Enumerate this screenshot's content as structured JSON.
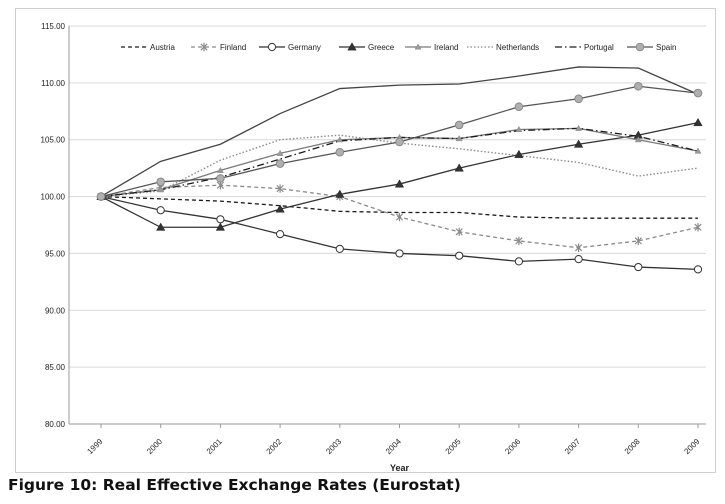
{
  "caption": "Figure 10: Real Effective Exchange Rates (Eurostat)",
  "chart_data": {
    "type": "line",
    "title": "",
    "xlabel": "Year",
    "ylabel": "",
    "categories": [
      "1999",
      "2000",
      "2001",
      "2002",
      "2003",
      "2004",
      "2005",
      "2006",
      "2007",
      "2008",
      "2009"
    ],
    "ylim": [
      80,
      115
    ],
    "yticks": [
      "80.00",
      "85.00",
      "90.00",
      "95.00",
      "100.00",
      "105.00",
      "110.00",
      "115.00"
    ],
    "grid": true,
    "legend_position": "top",
    "series": [
      {
        "name": "Austria",
        "color": "#1a1a1a",
        "dash": "dashed",
        "marker": "none",
        "values": [
          100.0,
          99.8,
          99.6,
          99.2,
          98.7,
          98.6,
          98.6,
          98.2,
          98.1,
          98.1,
          98.1
        ]
      },
      {
        "name": "Finland",
        "color": "#8a8a8a",
        "dash": "dashed",
        "marker": "star",
        "values": [
          100.0,
          100.8,
          101.0,
          100.7,
          100.0,
          98.2,
          96.9,
          96.1,
          95.5,
          96.1,
          97.3
        ]
      },
      {
        "name": "Germany",
        "color": "#333333",
        "dash": "solid",
        "marker": "circle-open",
        "values": [
          100.0,
          98.8,
          98.0,
          96.7,
          95.4,
          95.0,
          94.8,
          94.3,
          94.5,
          93.8,
          93.6
        ]
      },
      {
        "name": "Greece",
        "color": "#333333",
        "dash": "solid",
        "marker": "triangle",
        "values": [
          100.0,
          97.3,
          97.3,
          98.9,
          100.2,
          101.1,
          102.5,
          103.7,
          104.6,
          105.4,
          106.5
        ]
      },
      {
        "name": "Ireland",
        "color": "#7a7a7a",
        "dash": "solid",
        "marker": "triangle-small",
        "values": [
          100.0,
          100.6,
          102.3,
          103.8,
          105.0,
          105.2,
          105.1,
          105.9,
          106.0,
          105.0,
          104.0
        ]
      },
      {
        "name": "Netherlands",
        "color": "#8c8c8c",
        "dash": "dotted",
        "marker": "none",
        "values": [
          100.0,
          100.5,
          103.2,
          105.0,
          105.4,
          104.7,
          104.2,
          103.6,
          103.0,
          101.8,
          102.5
        ]
      },
      {
        "name": "Portugal",
        "color": "#1a1a1a",
        "dash": "dashdot",
        "marker": "none",
        "values": [
          100.0,
          100.6,
          101.7,
          103.3,
          104.9,
          105.2,
          105.1,
          105.8,
          106.0,
          105.3,
          104.0
        ]
      },
      {
        "name": "Spain",
        "color": "#555555",
        "dash": "solid",
        "marker": "circle-gray",
        "values": [
          100.0,
          101.3,
          101.6,
          102.9,
          103.9,
          104.8,
          106.3,
          107.9,
          108.6,
          109.7,
          109.1
        ]
      },
      {
        "name": "",
        "color": "#444444",
        "dash": "solid",
        "marker": "none",
        "values": [
          100.0,
          103.1,
          104.6,
          107.3,
          109.5,
          109.8,
          109.9,
          110.6,
          111.4,
          111.3,
          109.0
        ]
      }
    ]
  }
}
